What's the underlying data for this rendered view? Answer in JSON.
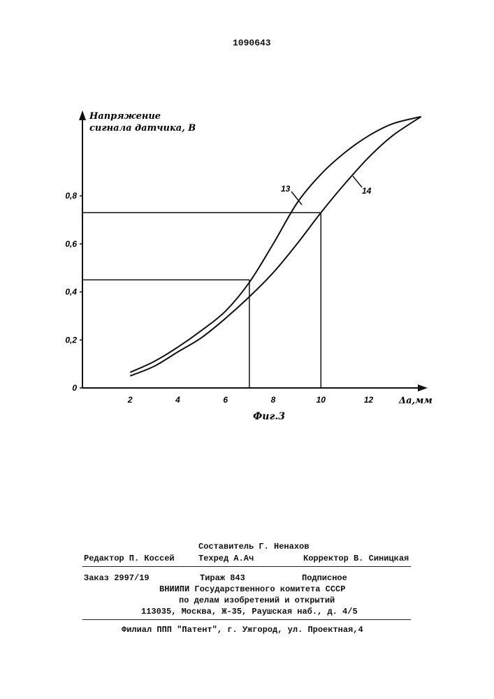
{
  "document": {
    "patent_number": "1090643"
  },
  "figure": {
    "caption": "Фиг.3",
    "y_axis_label": [
      "Напряжение",
      "сигнала датчика, В"
    ],
    "x_axis_label": "Δа,мм",
    "curve_labels": [
      "13",
      "14"
    ]
  },
  "chart_data": {
    "type": "line",
    "title": "",
    "ylabel": "Напряжение сигнала датчика, В",
    "xlabel": "Δа,мм",
    "xlim": [
      0,
      14.3
    ],
    "ylim": [
      0,
      1.15
    ],
    "x_ticks": [
      "2",
      "4",
      "6",
      "8",
      "10",
      "12"
    ],
    "y_ticks": [
      "0",
      "0,2",
      "0,4",
      "0,6",
      "0,8"
    ],
    "grid": false,
    "series": [
      {
        "name": "13",
        "x": [
          2,
          3,
          4,
          5,
          6,
          7,
          8,
          9,
          10,
          11,
          12,
          13,
          14.2
        ],
        "y": [
          0.065,
          0.11,
          0.17,
          0.24,
          0.32,
          0.44,
          0.6,
          0.77,
          0.89,
          0.98,
          1.05,
          1.1,
          1.13
        ]
      },
      {
        "name": "14",
        "x": [
          2,
          3,
          4,
          5,
          6,
          7,
          8,
          9,
          10,
          11,
          12,
          13,
          14.2
        ],
        "y": [
          0.05,
          0.09,
          0.15,
          0.21,
          0.29,
          0.38,
          0.48,
          0.6,
          0.73,
          0.85,
          0.96,
          1.05,
          1.13
        ]
      }
    ],
    "reference_lines": [
      {
        "x": 7,
        "y": 0.45
      },
      {
        "x": 10,
        "y": 0.73
      }
    ]
  },
  "imprint": {
    "compiler": "Составитель Г. Ненахов",
    "editor": "Редактор П. Коссей",
    "techred": "Техред А.Ач",
    "corrector": "Корректор В. Синицкая",
    "order": "Заказ 2997/19",
    "circulation": "Тираж 843",
    "subscription": "Подписное",
    "org_line1": "ВНИИПИ Государственного комитета СССР",
    "org_line2": "по делам изобретений и открытий",
    "address": "113035, Москва, Ж-35, Раушская наб., д. 4/5",
    "branch": "Филиал ППП \"Патент\", г. Ужгород, ул. Проектная,4"
  }
}
